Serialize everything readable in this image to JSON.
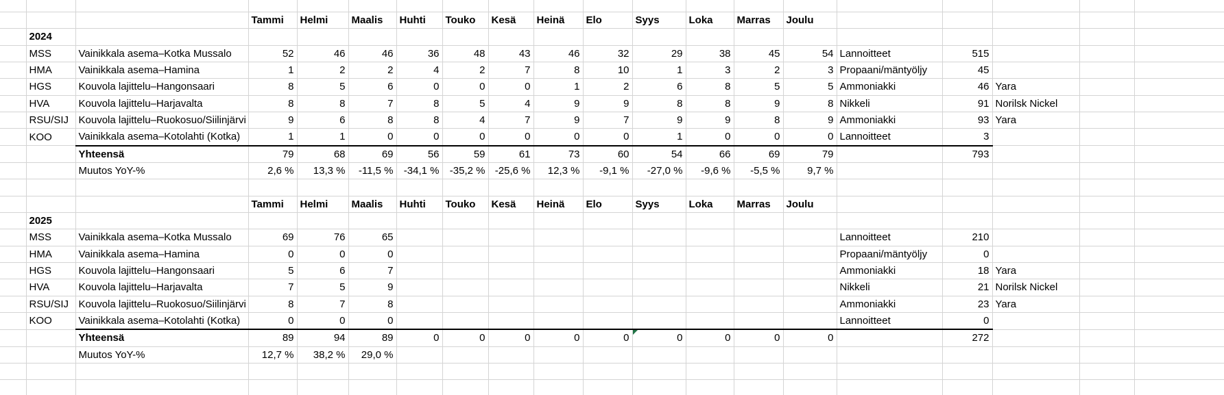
{
  "sheet": {
    "gridline_color": "#d4d4d4",
    "rule_color": "#000000",
    "flag_color": "#217346",
    "months": [
      "Tammi",
      "Helmi",
      "Maalis",
      "Huhti",
      "Touko",
      "Kesä",
      "Heinä",
      "Elo",
      "Syys",
      "Loka",
      "Marras",
      "Joulu"
    ],
    "sections": [
      {
        "year": "2024",
        "rows": [
          {
            "code": "MSS",
            "name": "Vainikkala asema–Kotka Mussalo",
            "values": [
              52,
              46,
              46,
              36,
              48,
              43,
              46,
              32,
              29,
              38,
              45,
              54
            ],
            "commodity": "Lannoitteet",
            "total": 515,
            "company": ""
          },
          {
            "code": "HMA",
            "name": "Vainikkala asema–Hamina",
            "values": [
              1,
              2,
              2,
              4,
              2,
              7,
              8,
              10,
              1,
              3,
              2,
              3
            ],
            "commodity": "Propaani/mäntyöljy",
            "total": 45,
            "company": ""
          },
          {
            "code": "HGS",
            "name": "Kouvola lajittelu–Hangonsaari",
            "values": [
              8,
              5,
              6,
              0,
              0,
              0,
              1,
              2,
              6,
              8,
              5,
              5
            ],
            "commodity": "Ammoniakki",
            "total": 46,
            "company": "Yara"
          },
          {
            "code": "HVA",
            "name": "Kouvola lajittelu–Harjavalta",
            "values": [
              8,
              8,
              7,
              8,
              5,
              4,
              9,
              9,
              8,
              8,
              9,
              8
            ],
            "commodity": "Nikkeli",
            "total": 91,
            "company": "Norilsk Nickel"
          },
          {
            "code": "RSU/SIJ",
            "name": "Kouvola lajittelu–Ruokosuo/Siilinjärvi",
            "values": [
              9,
              6,
              8,
              8,
              4,
              7,
              9,
              7,
              9,
              9,
              8,
              9
            ],
            "commodity": "Ammoniakki",
            "total": 93,
            "company": "Yara"
          },
          {
            "code": "KOO",
            "name": "Vainikkala asema–Kotolahti (Kotka)",
            "values": [
              1,
              1,
              0,
              0,
              0,
              0,
              0,
              0,
              1,
              0,
              0,
              0
            ],
            "commodity": "Lannoitteet",
            "total": 3,
            "company": ""
          }
        ],
        "total_label": "Yhteensä",
        "totals": [
          79,
          68,
          69,
          56,
          59,
          61,
          73,
          60,
          54,
          66,
          69,
          79
        ],
        "grand_total": 793,
        "yoy_label": "Muutos YoY-%",
        "yoy": [
          "2,6 %",
          "13,3 %",
          "-11,5 %",
          "-34,1 %",
          "-35,2 %",
          "-25,6 %",
          "12,3 %",
          "-9,1 %",
          "-27,0 %",
          "-9,6 %",
          "-5,5 %",
          "9,7 %"
        ]
      },
      {
        "year": "2025",
        "rows": [
          {
            "code": "MSS",
            "name": "Vainikkala asema–Kotka Mussalo",
            "values": [
              69,
              76,
              65,
              "",
              "",
              "",
              "",
              "",
              "",
              "",
              "",
              ""
            ],
            "commodity": "Lannoitteet",
            "total": 210,
            "company": ""
          },
          {
            "code": "HMA",
            "name": "Vainikkala asema–Hamina",
            "values": [
              0,
              0,
              0,
              "",
              "",
              "",
              "",
              "",
              "",
              "",
              "",
              ""
            ],
            "commodity": "Propaani/mäntyöljy",
            "total": 0,
            "company": ""
          },
          {
            "code": "HGS",
            "name": "Kouvola lajittelu–Hangonsaari",
            "values": [
              5,
              6,
              7,
              "",
              "",
              "",
              "",
              "",
              "",
              "",
              "",
              ""
            ],
            "commodity": "Ammoniakki",
            "total": 18,
            "company": "Yara"
          },
          {
            "code": "HVA",
            "name": "Kouvola lajittelu–Harjavalta",
            "values": [
              7,
              5,
              9,
              "",
              "",
              "",
              "",
              "",
              "",
              "",
              "",
              ""
            ],
            "commodity": "Nikkeli",
            "total": 21,
            "company": "Norilsk Nickel"
          },
          {
            "code": "RSU/SIJ",
            "name": "Kouvola lajittelu–Ruokosuo/Siilinjärvi",
            "values": [
              8,
              7,
              8,
              "",
              "",
              "",
              "",
              "",
              "",
              "",
              "",
              ""
            ],
            "commodity": "Ammoniakki",
            "total": 23,
            "company": "Yara"
          },
          {
            "code": "KOO",
            "name": "Vainikkala asema–Kotolahti (Kotka)",
            "values": [
              0,
              0,
              0,
              "",
              "",
              "",
              "",
              "",
              "",
              "",
              "",
              ""
            ],
            "commodity": "Lannoitteet",
            "total": 0,
            "company": ""
          }
        ],
        "total_label": "Yhteensä",
        "totals": [
          89,
          94,
          89,
          0,
          0,
          0,
          0,
          0,
          0,
          0,
          0,
          0
        ],
        "grand_total": 272,
        "yoy_label": "Muutos YoY-%",
        "yoy": [
          "12,7 %",
          "38,2 %",
          "29,0 %",
          "",
          "",
          "",
          "",
          "",
          "",
          "",
          "",
          ""
        ]
      }
    ]
  }
}
